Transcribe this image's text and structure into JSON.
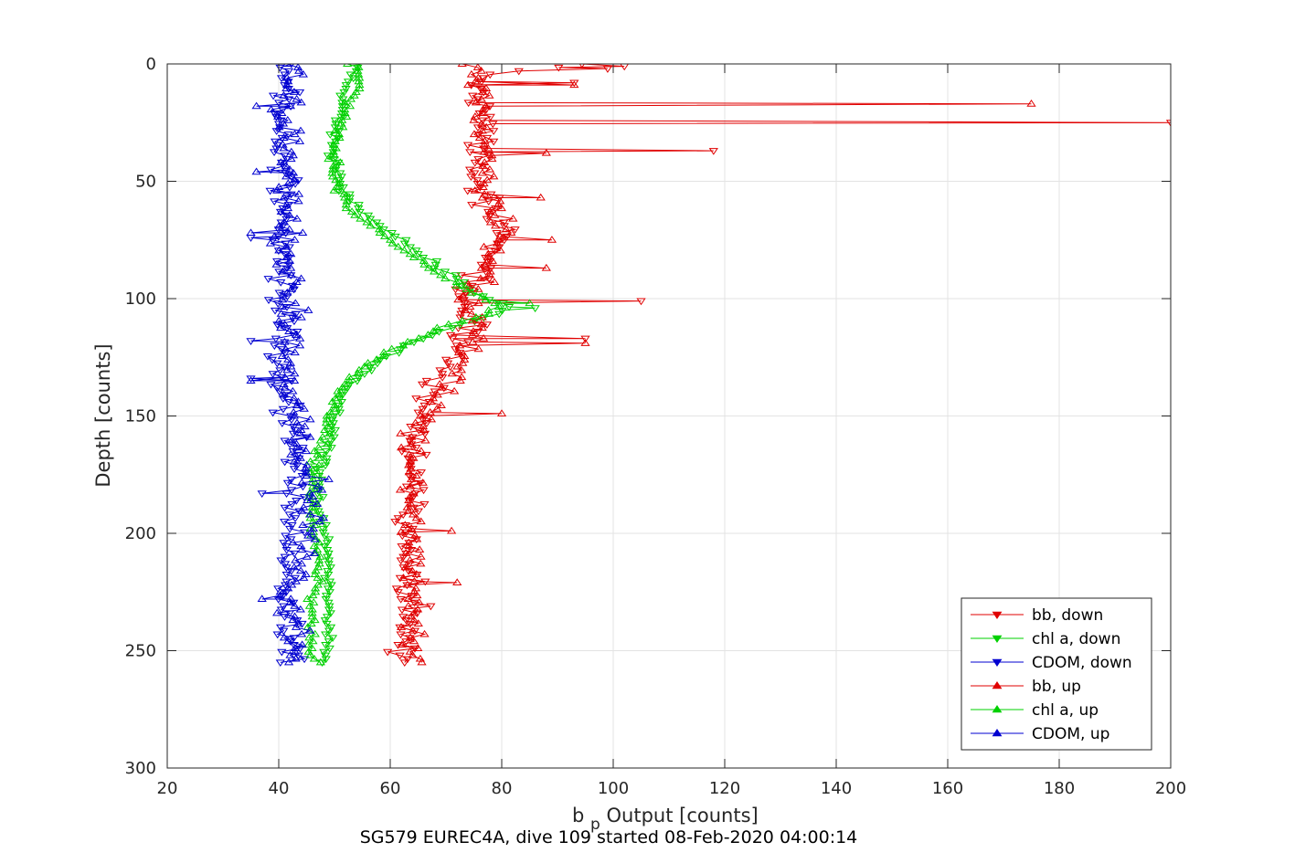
{
  "chart_data": {
    "type": "line",
    "title": "SG579 EUREC4A, dive 109 started 08-Feb-2020 04:00:14",
    "xlabel_main": "b",
    "xlabel_sub": "p",
    "xlabel_rest": " Output [counts]",
    "ylabel": "Depth [counts]",
    "xlim": [
      20,
      200
    ],
    "ylim": [
      0,
      300
    ],
    "y_reversed": true,
    "grid": true,
    "legend_position": "bottom-right",
    "x_ticks": [
      20,
      40,
      60,
      80,
      100,
      120,
      140,
      160,
      180,
      200
    ],
    "y_ticks": [
      0,
      50,
      100,
      150,
      200,
      250,
      300
    ],
    "series": [
      {
        "name": "bb, down",
        "color": "#e00000",
        "marker": "triangle-down",
        "profile": [
          [
            0,
            92
          ],
          [
            1,
            98
          ],
          [
            2,
            88
          ],
          [
            4,
            78
          ],
          [
            7,
            75
          ],
          [
            10,
            76
          ],
          [
            13,
            77
          ],
          [
            16,
            76
          ],
          [
            20,
            77
          ],
          [
            25,
            76
          ],
          [
            30,
            77
          ],
          [
            35,
            76
          ],
          [
            40,
            77
          ],
          [
            45,
            76
          ],
          [
            50,
            76
          ],
          [
            55,
            77
          ],
          [
            60,
            78
          ],
          [
            65,
            78
          ],
          [
            70,
            79
          ],
          [
            75,
            79
          ],
          [
            80,
            78
          ],
          [
            85,
            77
          ],
          [
            90,
            76
          ],
          [
            95,
            74
          ],
          [
            100,
            73
          ],
          [
            105,
            73
          ],
          [
            110,
            74
          ],
          [
            115,
            73
          ],
          [
            120,
            72
          ],
          [
            125,
            71
          ],
          [
            130,
            70
          ],
          [
            135,
            69
          ],
          [
            140,
            68
          ],
          [
            145,
            67
          ],
          [
            150,
            65
          ],
          [
            155,
            64
          ],
          [
            160,
            64
          ],
          [
            170,
            64
          ],
          [
            180,
            63
          ],
          [
            190,
            64
          ],
          [
            200,
            63
          ],
          [
            210,
            63
          ],
          [
            220,
            63
          ],
          [
            230,
            64
          ],
          [
            240,
            63
          ],
          [
            250,
            63
          ],
          [
            255,
            63
          ]
        ],
        "spikes": [
          [
            1,
            102
          ],
          [
            2,
            99
          ],
          [
            8,
            93
          ],
          [
            25,
            200
          ],
          [
            37,
            118
          ],
          [
            101,
            105
          ],
          [
            117,
            95
          ]
        ]
      },
      {
        "name": "chl a, down",
        "color": "#00d000",
        "marker": "triangle-down",
        "profile": [
          [
            0,
            54
          ],
          [
            5,
            53
          ],
          [
            10,
            52
          ],
          [
            15,
            51
          ],
          [
            20,
            51
          ],
          [
            30,
            50
          ],
          [
            40,
            50
          ],
          [
            50,
            51
          ],
          [
            55,
            52
          ],
          [
            60,
            54
          ],
          [
            65,
            56
          ],
          [
            70,
            59
          ],
          [
            75,
            62
          ],
          [
            80,
            65
          ],
          [
            85,
            68
          ],
          [
            90,
            71
          ],
          [
            95,
            74
          ],
          [
            100,
            78
          ],
          [
            103,
            82
          ],
          [
            106,
            80
          ],
          [
            110,
            74
          ],
          [
            115,
            68
          ],
          [
            120,
            63
          ],
          [
            125,
            59
          ],
          [
            130,
            56
          ],
          [
            135,
            54
          ],
          [
            140,
            52
          ],
          [
            150,
            50
          ],
          [
            160,
            49
          ],
          [
            170,
            48
          ],
          [
            180,
            47
          ],
          [
            190,
            47
          ],
          [
            200,
            48
          ],
          [
            210,
            49
          ],
          [
            220,
            49
          ],
          [
            230,
            49
          ],
          [
            240,
            49
          ],
          [
            250,
            49
          ],
          [
            255,
            48
          ]
        ],
        "spikes": [
          [
            104,
            86
          ]
        ]
      },
      {
        "name": "CDOM, down",
        "color": "#0000d0",
        "marker": "triangle-down",
        "profile": [
          [
            0,
            40
          ],
          [
            10,
            41
          ],
          [
            20,
            41
          ],
          [
            30,
            40
          ],
          [
            40,
            41
          ],
          [
            50,
            41
          ],
          [
            60,
            41
          ],
          [
            70,
            40
          ],
          [
            80,
            41
          ],
          [
            90,
            41
          ],
          [
            100,
            40
          ],
          [
            110,
            41
          ],
          [
            120,
            41
          ],
          [
            130,
            40
          ],
          [
            140,
            41
          ],
          [
            150,
            42
          ],
          [
            160,
            43
          ],
          [
            170,
            43
          ],
          [
            180,
            43
          ],
          [
            190,
            42
          ],
          [
            200,
            42
          ],
          [
            210,
            42
          ],
          [
            220,
            41
          ],
          [
            230,
            41
          ],
          [
            240,
            42
          ],
          [
            250,
            42
          ],
          [
            255,
            41
          ]
        ],
        "spikes": [
          [
            74,
            35
          ],
          [
            118,
            35
          ],
          [
            134,
            35
          ],
          [
            183,
            37
          ]
        ]
      },
      {
        "name": "bb, up",
        "color": "#e00000",
        "marker": "triangle-up",
        "profile": [
          [
            0,
            74
          ],
          [
            5,
            75
          ],
          [
            10,
            76
          ],
          [
            15,
            76
          ],
          [
            20,
            76
          ],
          [
            25,
            77
          ],
          [
            30,
            77
          ],
          [
            35,
            77
          ],
          [
            40,
            77
          ],
          [
            45,
            77
          ],
          [
            50,
            77
          ],
          [
            55,
            78
          ],
          [
            60,
            79
          ],
          [
            65,
            80
          ],
          [
            70,
            80
          ],
          [
            75,
            80
          ],
          [
            80,
            79
          ],
          [
            85,
            78
          ],
          [
            90,
            77
          ],
          [
            95,
            75
          ],
          [
            100,
            74
          ],
          [
            105,
            74
          ],
          [
            110,
            75
          ],
          [
            115,
            75
          ],
          [
            120,
            74
          ],
          [
            125,
            73
          ],
          [
            130,
            72
          ],
          [
            135,
            71
          ],
          [
            140,
            70
          ],
          [
            145,
            69
          ],
          [
            150,
            67
          ],
          [
            155,
            65
          ],
          [
            160,
            64
          ],
          [
            170,
            64
          ],
          [
            180,
            64
          ],
          [
            190,
            65
          ],
          [
            200,
            64
          ],
          [
            210,
            64
          ],
          [
            220,
            64
          ],
          [
            230,
            64
          ],
          [
            240,
            64
          ],
          [
            250,
            64
          ],
          [
            255,
            64
          ]
        ],
        "spikes": [
          [
            9,
            93
          ],
          [
            17,
            175
          ],
          [
            38,
            88
          ],
          [
            57,
            87
          ],
          [
            75,
            89
          ],
          [
            87,
            88
          ],
          [
            119,
            95
          ],
          [
            149,
            80
          ],
          [
            199,
            71
          ],
          [
            221,
            72
          ]
        ]
      },
      {
        "name": "chl a, up",
        "color": "#00d000",
        "marker": "triangle-up",
        "profile": [
          [
            0,
            53
          ],
          [
            5,
            54
          ],
          [
            10,
            54
          ],
          [
            15,
            53
          ],
          [
            20,
            52
          ],
          [
            30,
            51
          ],
          [
            40,
            50
          ],
          [
            50,
            50
          ],
          [
            55,
            51
          ],
          [
            60,
            52
          ],
          [
            65,
            54
          ],
          [
            70,
            57
          ],
          [
            75,
            60
          ],
          [
            80,
            63
          ],
          [
            85,
            66
          ],
          [
            90,
            69
          ],
          [
            95,
            73
          ],
          [
            100,
            77
          ],
          [
            103,
            80
          ],
          [
            106,
            78
          ],
          [
            110,
            72
          ],
          [
            115,
            67
          ],
          [
            120,
            62
          ],
          [
            125,
            58
          ],
          [
            130,
            55
          ],
          [
            135,
            53
          ],
          [
            140,
            51
          ],
          [
            150,
            49
          ],
          [
            160,
            48
          ],
          [
            170,
            46
          ],
          [
            180,
            46
          ],
          [
            190,
            46
          ],
          [
            200,
            46
          ],
          [
            210,
            47
          ],
          [
            220,
            47
          ],
          [
            230,
            46
          ],
          [
            240,
            46
          ],
          [
            250,
            46
          ],
          [
            255,
            47
          ]
        ],
        "spikes": [
          [
            102,
            85
          ]
        ]
      },
      {
        "name": "CDOM, up",
        "color": "#0000d0",
        "marker": "triangle-up",
        "profile": [
          [
            0,
            42
          ],
          [
            10,
            42
          ],
          [
            20,
            41
          ],
          [
            30,
            42
          ],
          [
            40,
            42
          ],
          [
            50,
            42
          ],
          [
            60,
            42
          ],
          [
            70,
            42
          ],
          [
            80,
            41
          ],
          [
            90,
            42
          ],
          [
            100,
            42
          ],
          [
            110,
            42
          ],
          [
            120,
            42
          ],
          [
            130,
            42
          ],
          [
            140,
            42
          ],
          [
            150,
            43
          ],
          [
            160,
            44
          ],
          [
            170,
            45
          ],
          [
            180,
            46
          ],
          [
            190,
            45
          ],
          [
            200,
            45
          ],
          [
            210,
            44
          ],
          [
            220,
            43
          ],
          [
            230,
            42
          ],
          [
            240,
            43
          ],
          [
            250,
            44
          ],
          [
            255,
            43
          ]
        ],
        "spikes": [
          [
            18,
            36
          ],
          [
            46,
            36
          ],
          [
            72,
            35
          ],
          [
            135,
            35
          ],
          [
            228,
            37
          ]
        ]
      }
    ]
  }
}
